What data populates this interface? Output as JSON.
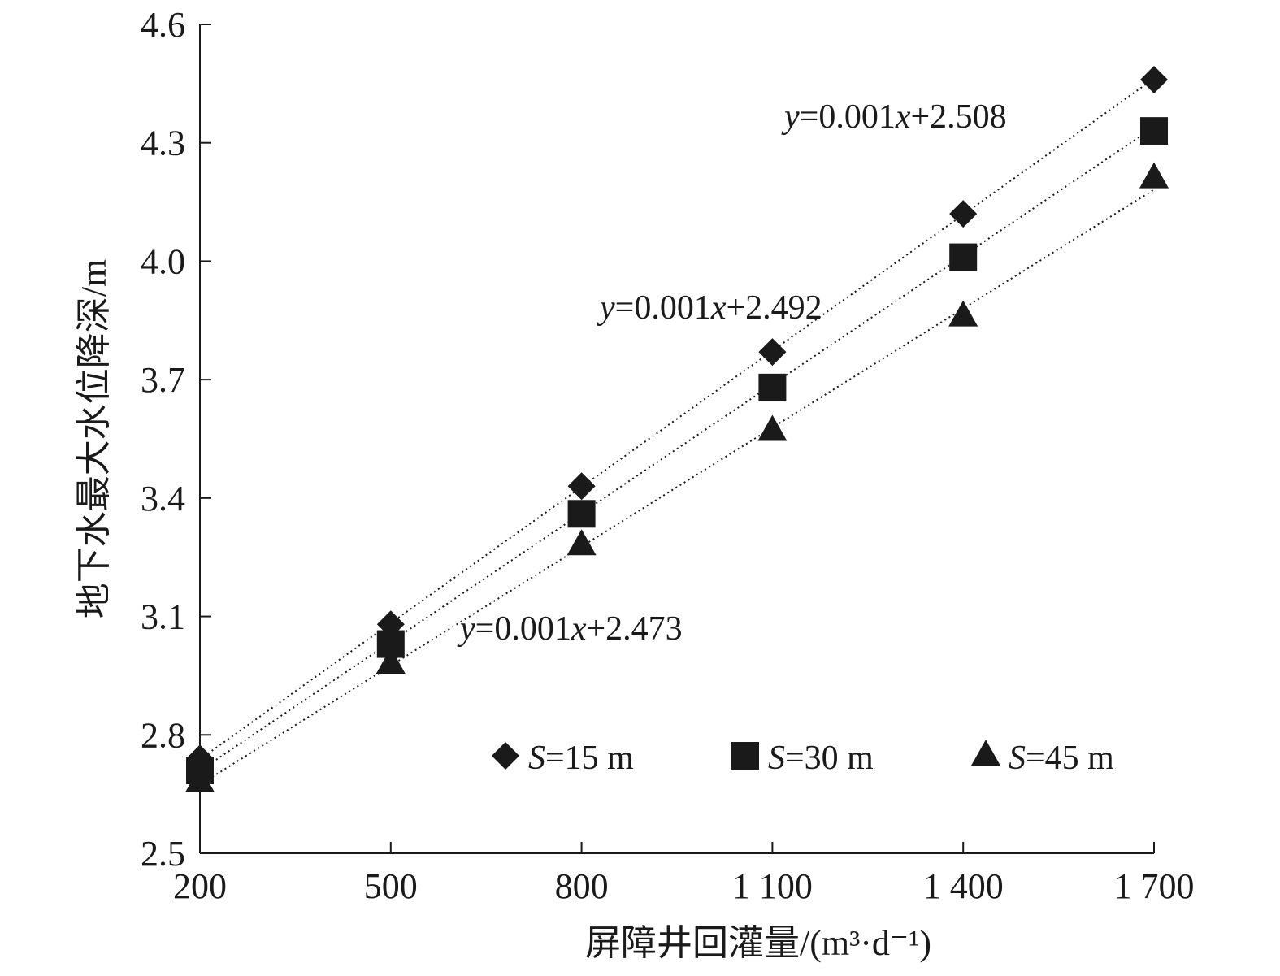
{
  "chart_data": {
    "type": "scatter",
    "xlabel": "屏障井回灌量/(m³·d⁻¹)",
    "ylabel": "地下水最大水位降深/m",
    "xlim": [
      200,
      1700
    ],
    "ylim": [
      2.5,
      4.6
    ],
    "x_ticks": [
      200,
      500,
      800,
      1100,
      1400,
      1700
    ],
    "x_tick_labels": [
      "200",
      "500",
      "800",
      "1 100",
      "1 400",
      "1 700"
    ],
    "y_ticks": [
      2.5,
      2.8,
      3.1,
      3.4,
      3.7,
      4.0,
      4.3,
      4.6
    ],
    "y_tick_labels": [
      "2.5",
      "2.8",
      "3.1",
      "3.4",
      "3.7",
      "4.0",
      "4.3",
      "4.6"
    ],
    "legend_position": "bottom-right",
    "series": [
      {
        "name": "S=15 m",
        "legend_var": "S",
        "legend_rest": "=15 m",
        "marker": "diamond",
        "x": [
          200,
          500,
          800,
          1100,
          1400,
          1700
        ],
        "y": [
          2.74,
          3.08,
          3.43,
          3.77,
          4.12,
          4.46
        ],
        "fit": {
          "slope": 0.00115,
          "intercept": 2.508,
          "label": {
            "var_y": "y",
            "coef": "=0.001",
            "var_x": "x",
            "tail": "+2.508"
          }
        }
      },
      {
        "name": "S=30 m",
        "legend_var": "S",
        "legend_rest": "=30 m",
        "marker": "square",
        "x": [
          200,
          500,
          800,
          1100,
          1400,
          1700
        ],
        "y": [
          2.71,
          3.03,
          3.36,
          3.68,
          4.01,
          4.33
        ],
        "fit": {
          "slope": 0.001087,
          "intercept": 2.492,
          "label": {
            "var_y": "y",
            "coef": "=0.001",
            "var_x": "x",
            "tail": "+2.492"
          }
        }
      },
      {
        "name": "S=45 m",
        "legend_var": "S",
        "legend_rest": "=45 m",
        "marker": "triangle",
        "x": [
          200,
          500,
          800,
          1100,
          1400,
          1700
        ],
        "y": [
          2.68,
          2.98,
          3.28,
          3.57,
          3.86,
          4.21
        ],
        "fit": {
          "slope": 0.001005,
          "intercept": 2.473,
          "label": {
            "var_y": "y",
            "coef": "=0.001",
            "var_x": "x",
            "tail": "+2.473"
          }
        }
      }
    ]
  }
}
